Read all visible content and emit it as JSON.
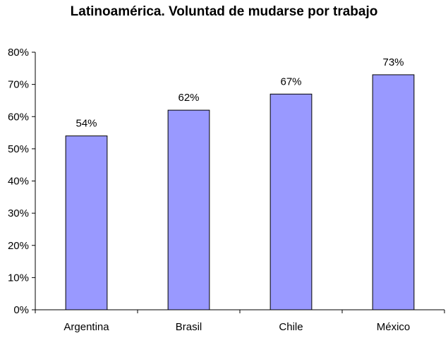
{
  "chart_data": {
    "type": "bar",
    "title": "Latinoamérica. Voluntad de mudarse por trabajo",
    "categories": [
      "Argentina",
      "Brasil",
      "Chile",
      "México"
    ],
    "values": [
      0.54,
      0.62,
      0.67,
      0.73
    ],
    "data_labels": [
      "54%",
      "62%",
      "67%",
      "73%"
    ],
    "ylim": [
      0,
      0.8
    ],
    "yticks": [
      0,
      0.1,
      0.2,
      0.3,
      0.4,
      0.5,
      0.6,
      0.7,
      0.8
    ],
    "ytick_labels": [
      "0%",
      "10%",
      "20%",
      "30%",
      "40%",
      "50%",
      "60%",
      "70%",
      "80%"
    ],
    "xlabel": "",
    "ylabel": "",
    "grid": false,
    "legend": "none",
    "bar_color": "#9999ff",
    "bar_edge_color": "#000000"
  }
}
